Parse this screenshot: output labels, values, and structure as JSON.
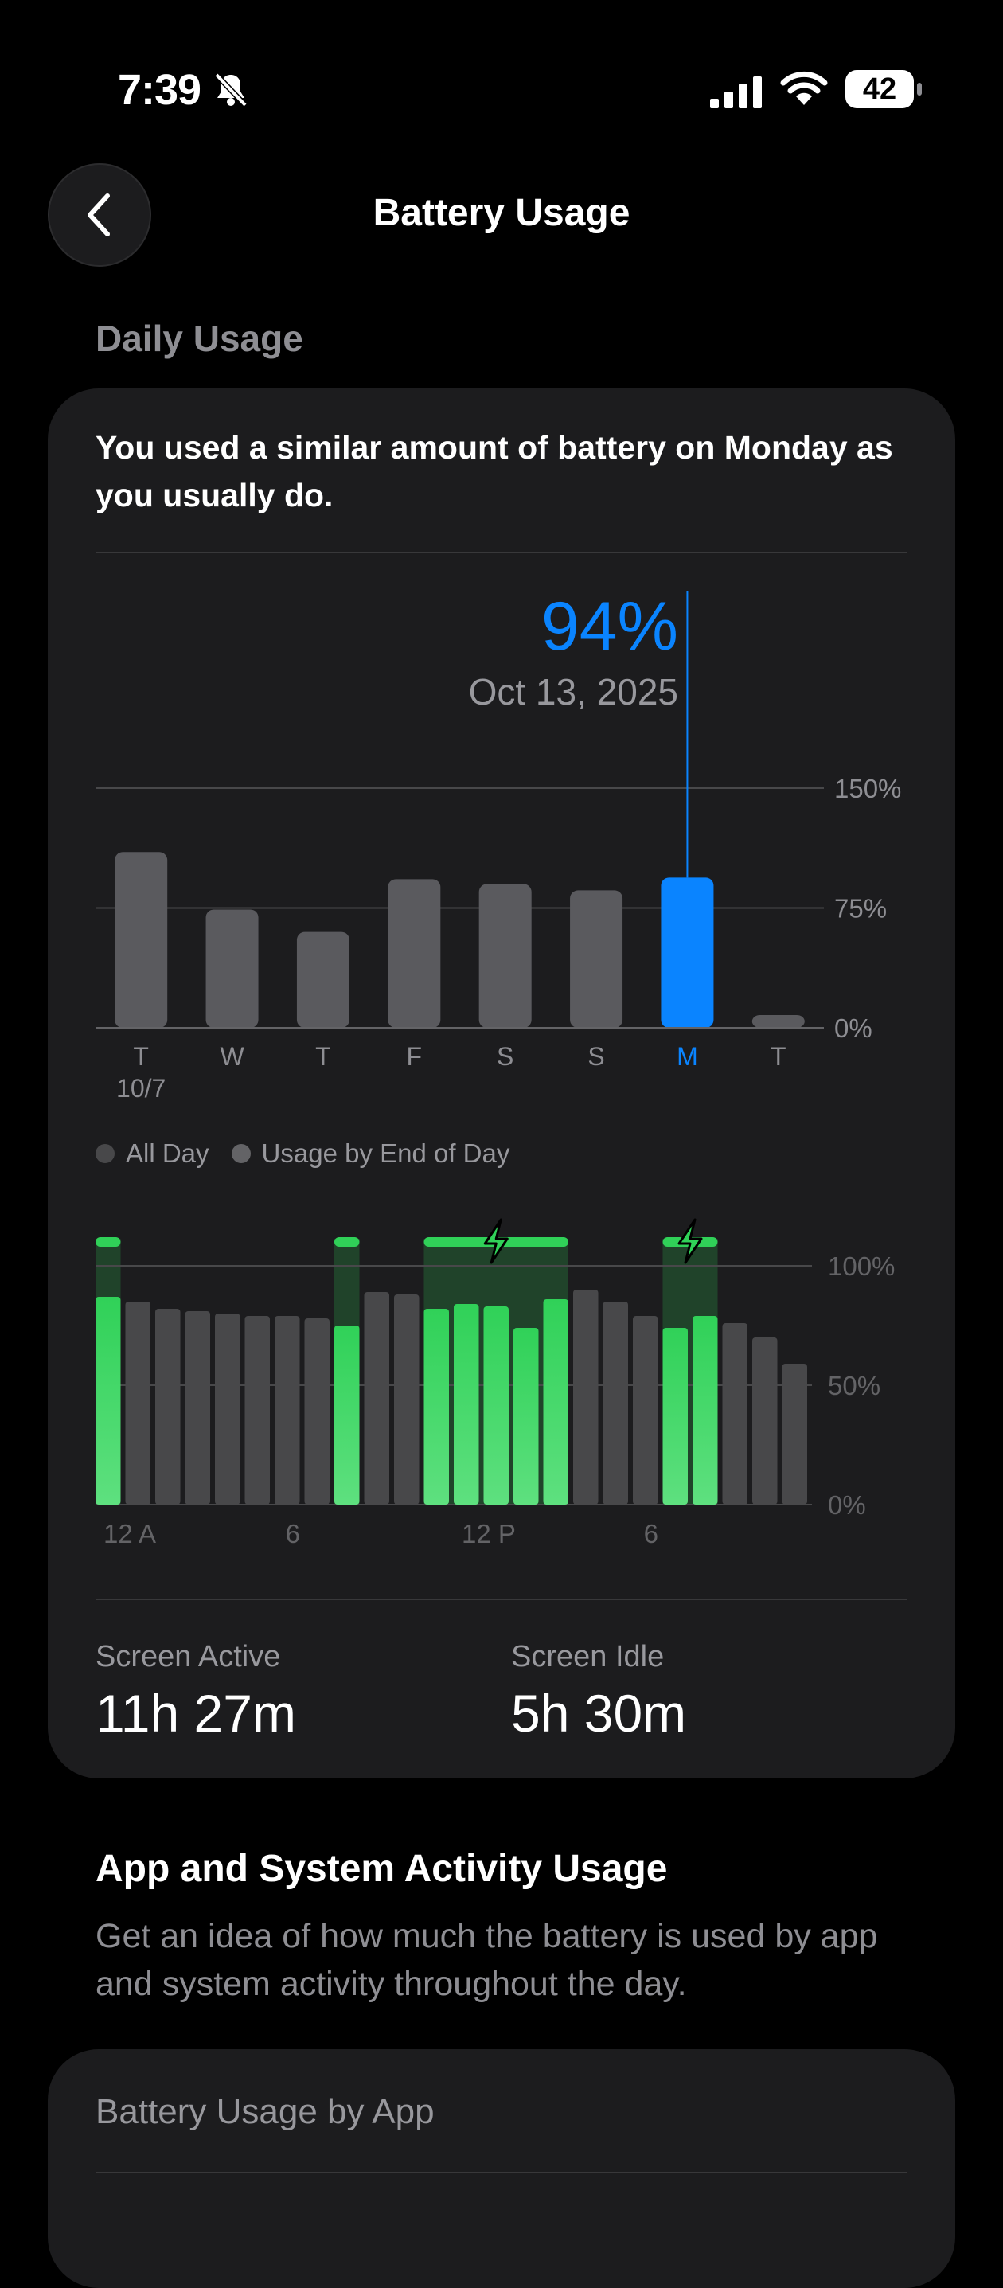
{
  "status_bar": {
    "time": "7:39",
    "battery_level": "42",
    "icons": [
      "bell-slash-icon",
      "cellular-signal-icon",
      "wifi-icon",
      "battery-icon"
    ]
  },
  "header": {
    "title": "Battery Usage",
    "back_icon": "chevron-left-icon"
  },
  "daily_usage": {
    "section_title": "Daily Usage",
    "summary": "You used a similar amount of battery on Monday as you usually do.",
    "selected_value": "94%",
    "selected_date": "Oct 13, 2025",
    "legend": [
      {
        "label": "All Day",
        "color": "#48484a"
      },
      {
        "label": "Usage by End of Day",
        "color": "#636366"
      }
    ],
    "screen_active_label": "Screen Active",
    "screen_active_value": "11h 27m",
    "screen_idle_label": "Screen Idle",
    "screen_idle_value": "5h 30m"
  },
  "chart_data": [
    {
      "type": "bar",
      "title": "",
      "categories": [
        "T",
        "W",
        "T",
        "F",
        "S",
        "S",
        "M",
        "T"
      ],
      "sub_labels": [
        "10/7",
        "",
        "",
        "",
        "",
        "",
        "",
        ""
      ],
      "values": [
        110,
        74,
        60,
        93,
        90,
        86,
        94,
        8
      ],
      "selected_index": 6,
      "yticks": [
        "150%",
        "75%",
        "0%"
      ],
      "ylim": [
        0,
        150
      ],
      "colors": {
        "default": "#5a5a5e",
        "selected": "#0a84ff"
      }
    },
    {
      "type": "bar",
      "title": "",
      "x_tick_labels": [
        "12 A",
        "6",
        "12 P",
        "6"
      ],
      "yticks": [
        "100%",
        "50%",
        "0%"
      ],
      "ylim": [
        0,
        100
      ],
      "values": [
        87,
        85,
        82,
        81,
        80,
        79,
        79,
        78,
        75,
        89,
        88,
        82,
        84,
        83,
        74,
        86,
        90,
        85,
        79,
        74,
        79,
        76,
        70,
        59
      ],
      "charging": [
        true,
        false,
        false,
        false,
        false,
        false,
        false,
        false,
        true,
        false,
        false,
        true,
        true,
        true,
        true,
        true,
        false,
        false,
        false,
        true,
        true,
        false,
        false,
        false
      ],
      "colors": {
        "default": "#48484a",
        "charging": "#30d158"
      }
    }
  ],
  "activity": {
    "title": "App and System Activity Usage",
    "description": "Get an idea of how much the battery is used by app and system activity throughout the day.",
    "by_app_title": "Battery Usage by App"
  }
}
